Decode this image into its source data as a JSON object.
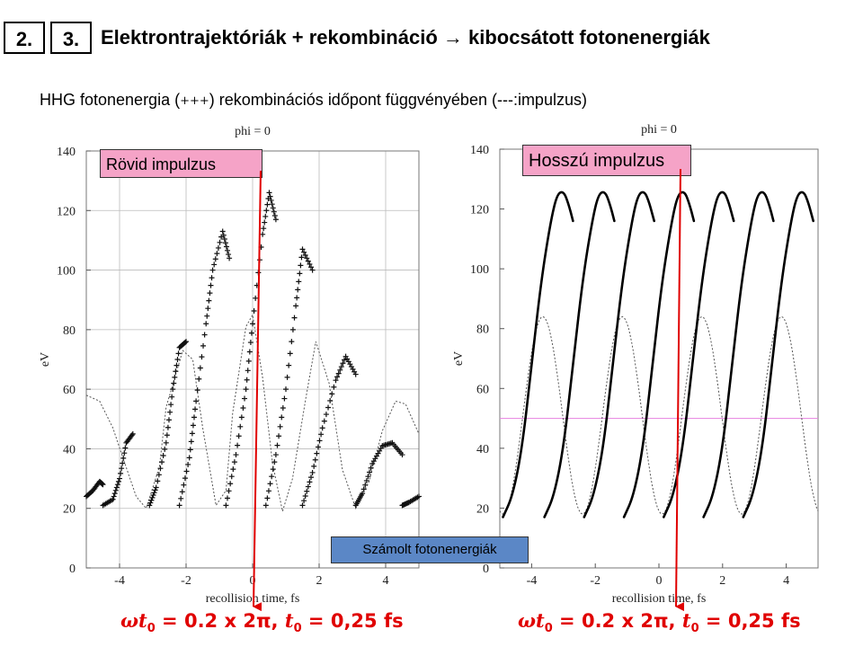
{
  "slide": {
    "box_a": "2.",
    "box_b": "3.",
    "title": "Elektrontrajektóriák + rekombináció → kibocsátott fotonenergiák",
    "subtitle_pre": "HHG fotonenergia (",
    "subtitle_plus": "+++",
    "subtitle_post": ") rekombinációs időpont  függvényében (---:impulzus)",
    "left_box": "Rövid impulzus",
    "right_box": "Hosszú impulzus",
    "center_box": "Számolt fotonenergiák",
    "formula_omega": "ω",
    "formula_t": "t",
    "formula_sub": "0",
    "formula_mid": " = 0.2 x 2π, ",
    "formula_t2": "t",
    "formula_sub2": "0",
    "formula_end": " = 0,25 fs"
  },
  "colors": {
    "pink_box": "#f5a3c7",
    "blue_box": "#5b87c6",
    "red_annotation": "#e00000",
    "pink_line": "#e680e0"
  },
  "chart_data": [
    {
      "type": "line",
      "title": "phi = 0",
      "xlabel": "recollision time, fs",
      "ylabel": "eV",
      "xlim": [
        -5,
        5
      ],
      "ylim": [
        0,
        140
      ],
      "x_ticks": [
        -4,
        -2,
        0,
        2,
        4
      ],
      "y_ticks": [
        0,
        20,
        40,
        60,
        80,
        100,
        120,
        140
      ],
      "grid": true,
      "series": [
        {
          "style": "dotted",
          "x": [
            -5.0,
            -4.6,
            -4.2,
            -3.9,
            -3.5,
            -3.2,
            -2.8,
            -2.6,
            -2.1,
            -1.8,
            -1.5,
            -1.1,
            -0.8,
            -0.6,
            -0.2,
            0.0,
            0.3,
            0.6,
            0.9,
            1.2,
            1.6,
            1.9,
            2.3,
            2.7,
            3.1,
            3.5,
            3.9,
            4.3,
            4.6,
            5.0
          ],
          "y": [
            58,
            56,
            47,
            37,
            24,
            20,
            34,
            54,
            73,
            70,
            47,
            21,
            26,
            52,
            81,
            85,
            64,
            35,
            19,
            30,
            57,
            76,
            62,
            33,
            20,
            29,
            46,
            56,
            55,
            45
          ]
        },
        {
          "style": "markers",
          "segments": [
            {
              "x": [
                -5.0,
                -4.8,
                -4.6,
                -4.5
              ],
              "y": [
                24,
                26,
                29,
                28
              ]
            },
            {
              "x": [
                -4.5,
                -4.2,
                -4.0,
                -3.8,
                -3.6
              ],
              "y": [
                21,
                23,
                30,
                42,
                45
              ]
            },
            {
              "x": [
                -3.1,
                -2.9,
                -2.6,
                -2.4,
                -2.2,
                -2.0
              ],
              "y": [
                21,
                27,
                42,
                60,
                74,
                76
              ]
            },
            {
              "x": [
                -2.2,
                -1.9,
                -1.7,
                -1.4,
                -1.2,
                -0.9,
                -0.7
              ],
              "y": [
                21,
                37,
                56,
                82,
                100,
                113,
                104
              ]
            },
            {
              "x": [
                -0.8,
                -0.5,
                -0.2,
                0.0,
                0.3,
                0.5,
                0.7
              ],
              "y": [
                21,
                38,
                60,
                82,
                112,
                126,
                117
              ]
            },
            {
              "x": [
                0.4,
                0.7,
                1.0,
                1.3,
                1.5,
                1.8
              ],
              "y": [
                21,
                38,
                60,
                88,
                107,
                100
              ]
            },
            {
              "x": [
                1.5,
                1.8,
                2.1,
                2.5,
                2.8,
                3.1
              ],
              "y": [
                21,
                32,
                47,
                63,
                71,
                65
              ]
            },
            {
              "x": [
                3.1,
                3.3,
                3.6,
                3.9,
                4.2,
                4.5
              ],
              "y": [
                21,
                25,
                35,
                41,
                42,
                38
              ]
            },
            {
              "x": [
                4.5,
                4.7,
                5.0
              ],
              "y": [
                21,
                22,
                24
              ]
            }
          ]
        }
      ]
    },
    {
      "type": "line",
      "title": "phi = 0",
      "xlabel": "recollision time, fs",
      "ylabel": "eV",
      "xlim": [
        -5,
        5
      ],
      "ylim": [
        0,
        140
      ],
      "x_ticks": [
        -4,
        -2,
        0,
        2,
        4
      ],
      "y_ticks": [
        0,
        20,
        40,
        60,
        80,
        100,
        120,
        140
      ],
      "grid": false,
      "hline": 50,
      "series": [
        {
          "style": "dotted",
          "period": 2.5,
          "phase": -4.9,
          "min": 18,
          "max": 84
        },
        {
          "style": "solid",
          "shape": {
            "x": [
              0.0,
              0.3,
              0.6,
              0.9,
              1.2,
              1.5,
              1.7,
              1.9,
              2.05,
              2.2
            ],
            "y": [
              17,
              24,
              40,
              68,
              96,
              116,
              125,
              126,
              122,
              116
            ]
          },
          "offsets": [
            -4.9,
            -3.6,
            -2.35,
            -1.1,
            0.15,
            1.4,
            2.65
          ]
        }
      ]
    }
  ]
}
